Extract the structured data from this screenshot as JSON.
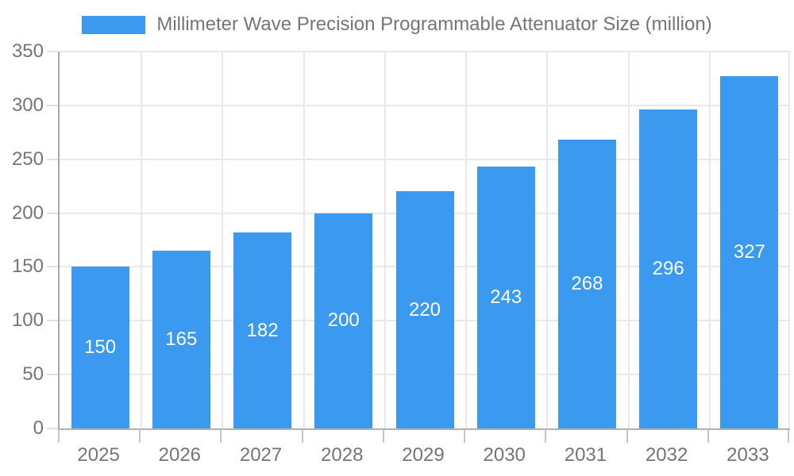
{
  "chart_data": {
    "type": "bar",
    "title": "Millimeter Wave Precision Programmable Attenuator Size (million)",
    "legend": {
      "position": "top",
      "entries": [
        "Millimeter Wave Precision Programmable Attenuator Size (million)"
      ]
    },
    "categories": [
      "2025",
      "2026",
      "2027",
      "2028",
      "2029",
      "2030",
      "2031",
      "2032",
      "2033"
    ],
    "values": [
      150,
      165,
      182,
      200,
      220,
      243,
      268,
      296,
      327
    ],
    "bar_labels": [
      "150",
      "165",
      "182",
      "200",
      "220",
      "243",
      "268",
      "296",
      "327"
    ],
    "xlabel": "",
    "ylabel": "",
    "ylim": [
      0,
      350
    ],
    "ytick_step": 50,
    "yticks": [
      0,
      50,
      100,
      150,
      200,
      250,
      300,
      350
    ],
    "grid": true,
    "colors": {
      "bar": "#3b99f0",
      "grid": "#e8e8e8",
      "axis": "#b0b0b0",
      "text": "#757575",
      "bar_label_text": "#ffffff",
      "background": "#ffffff"
    }
  }
}
